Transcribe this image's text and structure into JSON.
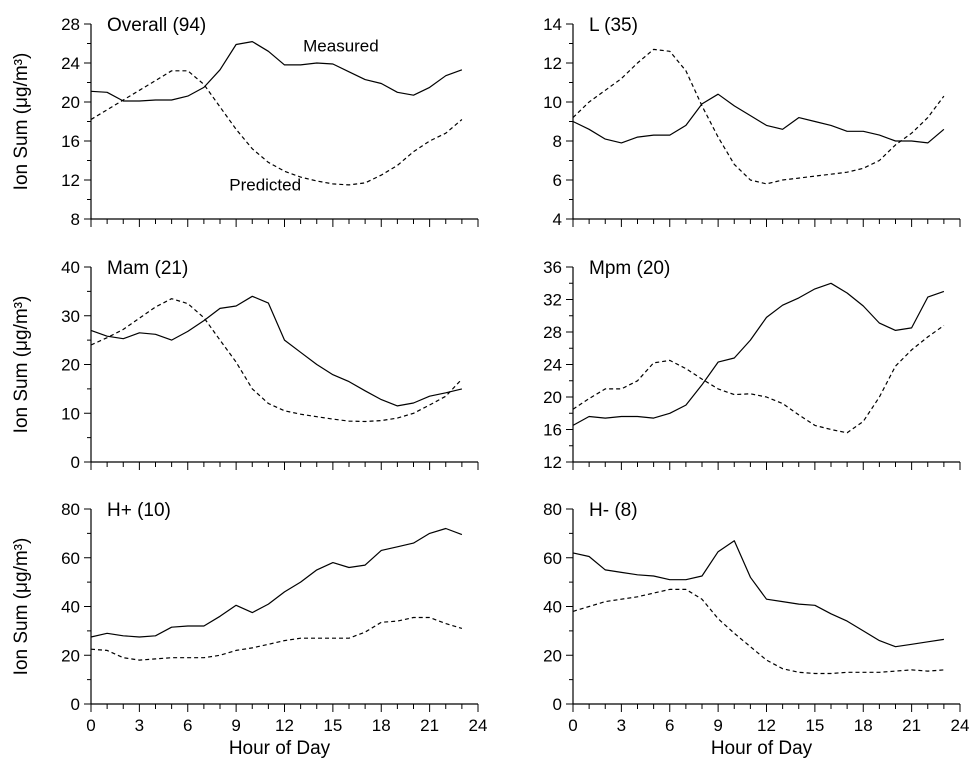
{
  "chart_data": [
    {
      "type": "line",
      "title": "Overall (94)",
      "ylabel": "Ion Sum (μg/m³)",
      "xlabel": "",
      "xlim": [
        0,
        24
      ],
      "xticks": [
        0,
        3,
        6,
        9,
        12,
        15,
        18,
        21,
        24
      ],
      "ylim": [
        8,
        28
      ],
      "yticks": [
        8,
        12,
        16,
        20,
        24,
        28
      ],
      "show_x_ticklabels": false,
      "annotations": [
        {
          "text": "Measured",
          "x": 15.5,
          "y": 25.2
        },
        {
          "text": "Predicted",
          "x": 10.8,
          "y": 10.9
        }
      ],
      "x": [
        0,
        1,
        2,
        3,
        4,
        5,
        6,
        7,
        8,
        9,
        10,
        11,
        12,
        13,
        14,
        15,
        16,
        17,
        18,
        19,
        20,
        21,
        22,
        23
      ],
      "series": [
        {
          "name": "Measured",
          "style": "solid",
          "values": [
            21.1,
            21.0,
            20.1,
            20.1,
            20.2,
            20.2,
            20.6,
            21.5,
            23.3,
            25.9,
            26.2,
            25.2,
            23.8,
            23.8,
            24.0,
            23.9,
            23.1,
            22.3,
            21.9,
            21.0,
            20.7,
            21.5,
            22.7,
            23.3
          ]
        },
        {
          "name": "Predicted",
          "style": "dashed",
          "values": [
            18.2,
            19.2,
            20.2,
            21.2,
            22.2,
            23.2,
            23.2,
            21.8,
            19.5,
            17.2,
            15.2,
            13.8,
            12.9,
            12.3,
            11.9,
            11.6,
            11.5,
            11.7,
            12.5,
            13.5,
            14.9,
            16.0,
            16.8,
            18.2
          ]
        }
      ]
    },
    {
      "type": "line",
      "title": "L (35)",
      "ylabel": "",
      "xlabel": "",
      "xlim": [
        0,
        24
      ],
      "xticks": [
        0,
        3,
        6,
        9,
        12,
        15,
        18,
        21,
        24
      ],
      "ylim": [
        4,
        14
      ],
      "yticks": [
        4,
        6,
        8,
        10,
        12,
        14
      ],
      "show_x_ticklabels": false,
      "annotations": [],
      "x": [
        0,
        1,
        2,
        3,
        4,
        5,
        6,
        7,
        8,
        9,
        10,
        11,
        12,
        13,
        14,
        15,
        16,
        17,
        18,
        19,
        20,
        21,
        22,
        23
      ],
      "series": [
        {
          "name": "Measured",
          "style": "solid",
          "values": [
            9.0,
            8.6,
            8.1,
            7.9,
            8.2,
            8.3,
            8.3,
            8.8,
            9.9,
            10.4,
            9.8,
            9.3,
            8.8,
            8.6,
            9.2,
            9.0,
            8.8,
            8.5,
            8.5,
            8.3,
            8.0,
            8.0,
            7.9,
            8.6
          ]
        },
        {
          "name": "Predicted",
          "style": "dashed",
          "values": [
            9.2,
            10.0,
            10.6,
            11.2,
            12.0,
            12.7,
            12.6,
            11.6,
            9.8,
            8.2,
            6.8,
            6.0,
            5.8,
            6.0,
            6.1,
            6.2,
            6.3,
            6.4,
            6.6,
            7.0,
            7.8,
            8.4,
            9.2,
            10.3
          ]
        }
      ]
    },
    {
      "type": "line",
      "title": "Mam (21)",
      "ylabel": "Ion Sum (μg/m³)",
      "xlabel": "",
      "xlim": [
        0,
        24
      ],
      "xticks": [
        0,
        3,
        6,
        9,
        12,
        15,
        18,
        21,
        24
      ],
      "ylim": [
        0,
        40
      ],
      "yticks": [
        0,
        10,
        20,
        30,
        40
      ],
      "show_x_ticklabels": false,
      "annotations": [],
      "x": [
        0,
        1,
        2,
        3,
        4,
        5,
        6,
        7,
        8,
        9,
        10,
        11,
        12,
        13,
        14,
        15,
        16,
        17,
        18,
        19,
        20,
        21,
        22,
        23
      ],
      "series": [
        {
          "name": "Measured",
          "style": "solid",
          "values": [
            27.0,
            25.8,
            25.3,
            26.5,
            26.2,
            25.0,
            26.8,
            29.0,
            31.5,
            32.0,
            34.0,
            32.6,
            25.0,
            22.5,
            20.0,
            17.9,
            16.5,
            14.6,
            12.8,
            11.5,
            12.1,
            13.5,
            14.2,
            15.0
          ]
        },
        {
          "name": "Predicted",
          "style": "dashed",
          "values": [
            24.0,
            25.5,
            27.2,
            29.5,
            31.8,
            33.5,
            32.5,
            29.6,
            25.0,
            20.5,
            15.0,
            12.0,
            10.5,
            9.8,
            9.3,
            8.8,
            8.4,
            8.3,
            8.5,
            9.0,
            10.0,
            11.7,
            13.5,
            17.0
          ]
        }
      ]
    },
    {
      "type": "line",
      "title": "Mpm (20)",
      "ylabel": "",
      "xlabel": "",
      "xlim": [
        0,
        24
      ],
      "xticks": [
        0,
        3,
        6,
        9,
        12,
        15,
        18,
        21,
        24
      ],
      "ylim": [
        12,
        36
      ],
      "yticks": [
        12,
        16,
        20,
        24,
        28,
        32,
        36
      ],
      "show_x_ticklabels": false,
      "annotations": [],
      "x": [
        0,
        1,
        2,
        3,
        4,
        5,
        6,
        7,
        8,
        9,
        10,
        11,
        12,
        13,
        14,
        15,
        16,
        17,
        18,
        19,
        20,
        21,
        22,
        23
      ],
      "series": [
        {
          "name": "Measured",
          "style": "solid",
          "values": [
            16.5,
            17.6,
            17.4,
            17.6,
            17.6,
            17.4,
            18.0,
            19.0,
            21.5,
            24.3,
            24.8,
            27.0,
            29.8,
            31.3,
            32.2,
            33.3,
            34.0,
            32.8,
            31.2,
            29.1,
            28.2,
            28.5,
            32.3,
            33.0
          ]
        },
        {
          "name": "Predicted",
          "style": "dashed",
          "values": [
            18.5,
            19.8,
            21.0,
            21.0,
            22.0,
            24.2,
            24.5,
            23.5,
            22.2,
            21.0,
            20.3,
            20.4,
            20.0,
            19.2,
            17.8,
            16.5,
            16.0,
            15.6,
            17.0,
            20.0,
            23.8,
            25.8,
            27.4,
            28.8
          ]
        }
      ]
    },
    {
      "type": "line",
      "title": "H+ (10)",
      "ylabel": "Ion Sum (μg/m³)",
      "xlabel": "Hour of Day",
      "xlim": [
        0,
        24
      ],
      "xticks": [
        0,
        3,
        6,
        9,
        12,
        15,
        18,
        21,
        24
      ],
      "ylim": [
        0,
        80
      ],
      "yticks": [
        0,
        20,
        40,
        60,
        80
      ],
      "show_x_ticklabels": true,
      "annotations": [],
      "x": [
        0,
        1,
        2,
        3,
        4,
        5,
        6,
        7,
        8,
        9,
        10,
        11,
        12,
        13,
        14,
        15,
        16,
        17,
        18,
        19,
        20,
        21,
        22,
        23
      ],
      "series": [
        {
          "name": "Measured",
          "style": "solid",
          "values": [
            27.5,
            29.0,
            28.0,
            27.5,
            28.0,
            31.5,
            32.0,
            32.0,
            36.0,
            40.5,
            37.5,
            41.0,
            46.0,
            50.0,
            55.0,
            58.0,
            56.0,
            57.0,
            63.0,
            64.5,
            66.0,
            70.0,
            72.0,
            69.5
          ]
        },
        {
          "name": "Predicted",
          "style": "dashed",
          "values": [
            22.5,
            22.0,
            19.0,
            18.0,
            18.5,
            19.0,
            19.0,
            19.0,
            20.0,
            22.0,
            23.0,
            24.5,
            26.0,
            27.0,
            27.0,
            27.0,
            27.0,
            29.5,
            33.5,
            34.0,
            35.5,
            35.5,
            33.0,
            31.0
          ]
        }
      ]
    },
    {
      "type": "line",
      "title": "H- (8)",
      "ylabel": "",
      "xlabel": "Hour of Day",
      "xlim": [
        0,
        24
      ],
      "xticks": [
        0,
        3,
        6,
        9,
        12,
        15,
        18,
        21,
        24
      ],
      "ylim": [
        0,
        80
      ],
      "yticks": [
        0,
        20,
        40,
        60,
        80
      ],
      "show_x_ticklabels": true,
      "annotations": [],
      "x": [
        0,
        1,
        2,
        3,
        4,
        5,
        6,
        7,
        8,
        9,
        10,
        11,
        12,
        13,
        14,
        15,
        16,
        17,
        18,
        19,
        20,
        21,
        22,
        23
      ],
      "series": [
        {
          "name": "Measured",
          "style": "solid",
          "values": [
            62.0,
            60.5,
            55.0,
            54.0,
            53.0,
            52.5,
            51.0,
            51.0,
            52.5,
            62.5,
            67.0,
            52.0,
            43.0,
            42.0,
            41.0,
            40.5,
            37.0,
            34.0,
            30.0,
            26.0,
            23.5,
            24.5,
            25.5,
            26.5
          ]
        },
        {
          "name": "Predicted",
          "style": "dashed",
          "values": [
            38.0,
            40.0,
            42.0,
            43.0,
            44.0,
            45.5,
            47.0,
            47.0,
            43.0,
            35.0,
            29.0,
            23.5,
            18.0,
            14.5,
            13.0,
            12.5,
            12.5,
            13.0,
            13.0,
            13.0,
            13.5,
            14.0,
            13.5,
            14.0
          ]
        }
      ]
    }
  ]
}
